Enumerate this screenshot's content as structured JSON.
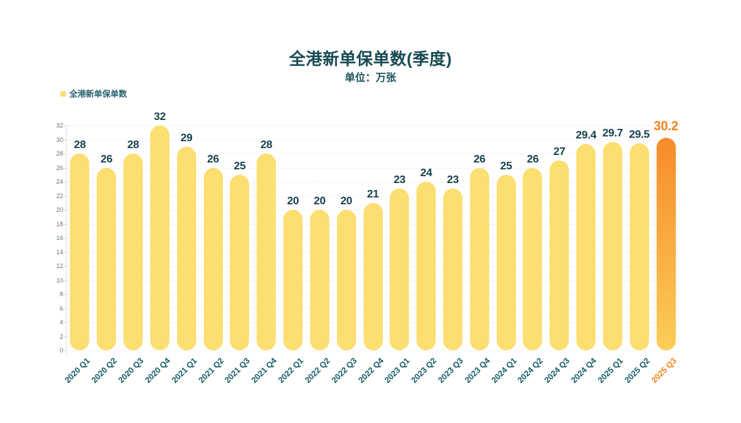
{
  "chart_data": {
    "type": "bar",
    "title": "全港新单保单数(季度)",
    "subtitle": "单位：万张",
    "legend_label": "全港新单保单数",
    "legend_position": "top-left",
    "categories": [
      "2020 Q1",
      "2020 Q2",
      "2020 Q3",
      "2020 Q4",
      "2021 Q1",
      "2021 Q2",
      "2021 Q3",
      "2021 Q4",
      "2022 Q1",
      "2022 Q2",
      "2022 Q3",
      "2022 Q4",
      "2023 Q1",
      "2023 Q2",
      "2023 Q3",
      "2023 Q4",
      "2024 Q1",
      "2024 Q2",
      "2024 Q3",
      "2024 Q4",
      "2025 Q1",
      "2025 Q2",
      "2025 Q3"
    ],
    "values": [
      28,
      26,
      28,
      32,
      29,
      26,
      25,
      28,
      20,
      20,
      20,
      21,
      23,
      24,
      23,
      26,
      25,
      26,
      27,
      29.4,
      29.7,
      29.5,
      30.2
    ],
    "value_labels": [
      "28",
      "26",
      "28",
      "32",
      "29",
      "26",
      "25",
      "28",
      "20",
      "20",
      "20",
      "21",
      "23",
      "24",
      "23",
      "26",
      "25",
      "26",
      "27",
      "29.4",
      "29.7",
      "29.5",
      "30.2"
    ],
    "ylim": [
      0,
      32
    ],
    "ytick_step": 2,
    "grid": true,
    "highlight_index": 22,
    "colors": {
      "bar": "#FCDE71",
      "highlight_gradient_top": "#F78B2B",
      "highlight_gradient_bottom": "#FBCD57",
      "value_label": "#163F4D",
      "highlight_value_label": "#F6851F",
      "x_axis_label": "#175B66",
      "highlight_x_axis_label": "#F6851F",
      "y_tick_label": "#66767D",
      "title": "#174A52",
      "subtitle": "#17525C",
      "legend_text": "#27616E"
    }
  }
}
